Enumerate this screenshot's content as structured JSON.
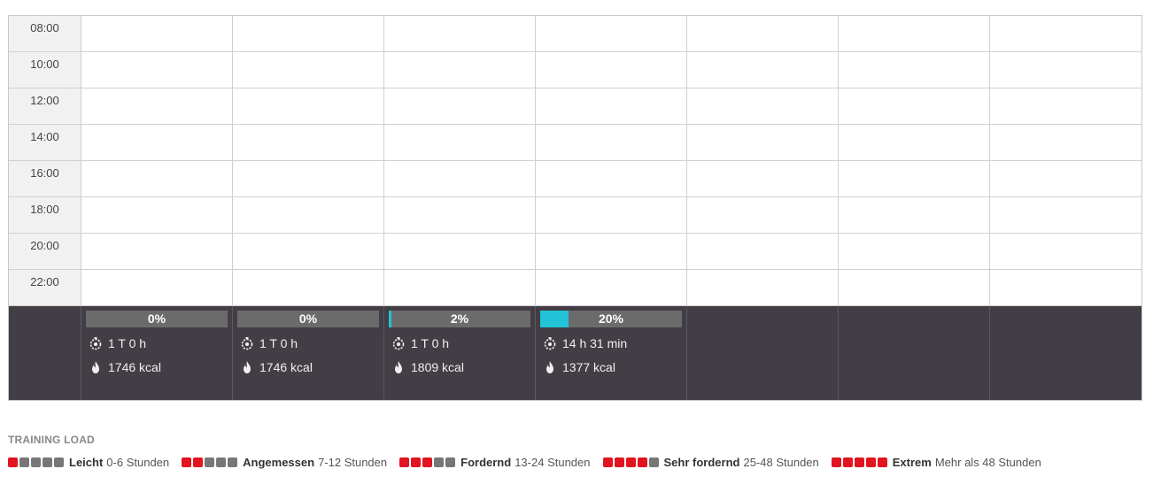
{
  "calendar": {
    "times": [
      "08:00",
      "10:00",
      "12:00",
      "14:00",
      "16:00",
      "18:00",
      "20:00",
      "22:00"
    ],
    "summary": [
      {
        "percent_label": "0%",
        "fill_fraction": 0.0,
        "duration": "1 T 0 h",
        "energy": "1746 kcal"
      },
      {
        "percent_label": "0%",
        "fill_fraction": 0.0,
        "duration": "1 T 0 h",
        "energy": "1746 kcal"
      },
      {
        "percent_label": "2%",
        "fill_fraction": 0.02,
        "duration": "1 T 0 h",
        "energy": "1809 kcal"
      },
      {
        "percent_label": "20%",
        "fill_fraction": 0.2,
        "duration": "14 h 31 min",
        "energy": "1377 kcal"
      },
      null,
      null,
      null
    ]
  },
  "colors": {
    "progress_fill": "#22c3d6",
    "summary_bg": "#433e45",
    "load_active": "#e1141f",
    "load_inactive": "#777777"
  },
  "icons": {
    "duration": "stopwatch-icon",
    "energy": "flame-icon"
  },
  "training_load": {
    "title": "TRAINING LOAD",
    "levels": [
      {
        "active": 1,
        "name": "Leicht",
        "range": "0-6 Stunden"
      },
      {
        "active": 2,
        "name": "Angemessen",
        "range": "7-12 Stunden"
      },
      {
        "active": 3,
        "name": "Fordernd",
        "range": "13-24 Stunden"
      },
      {
        "active": 4,
        "name": "Sehr fordernd",
        "range": "25-48 Stunden"
      },
      {
        "active": 5,
        "name": "Extrem",
        "range": "Mehr als 48 Stunden"
      }
    ]
  }
}
